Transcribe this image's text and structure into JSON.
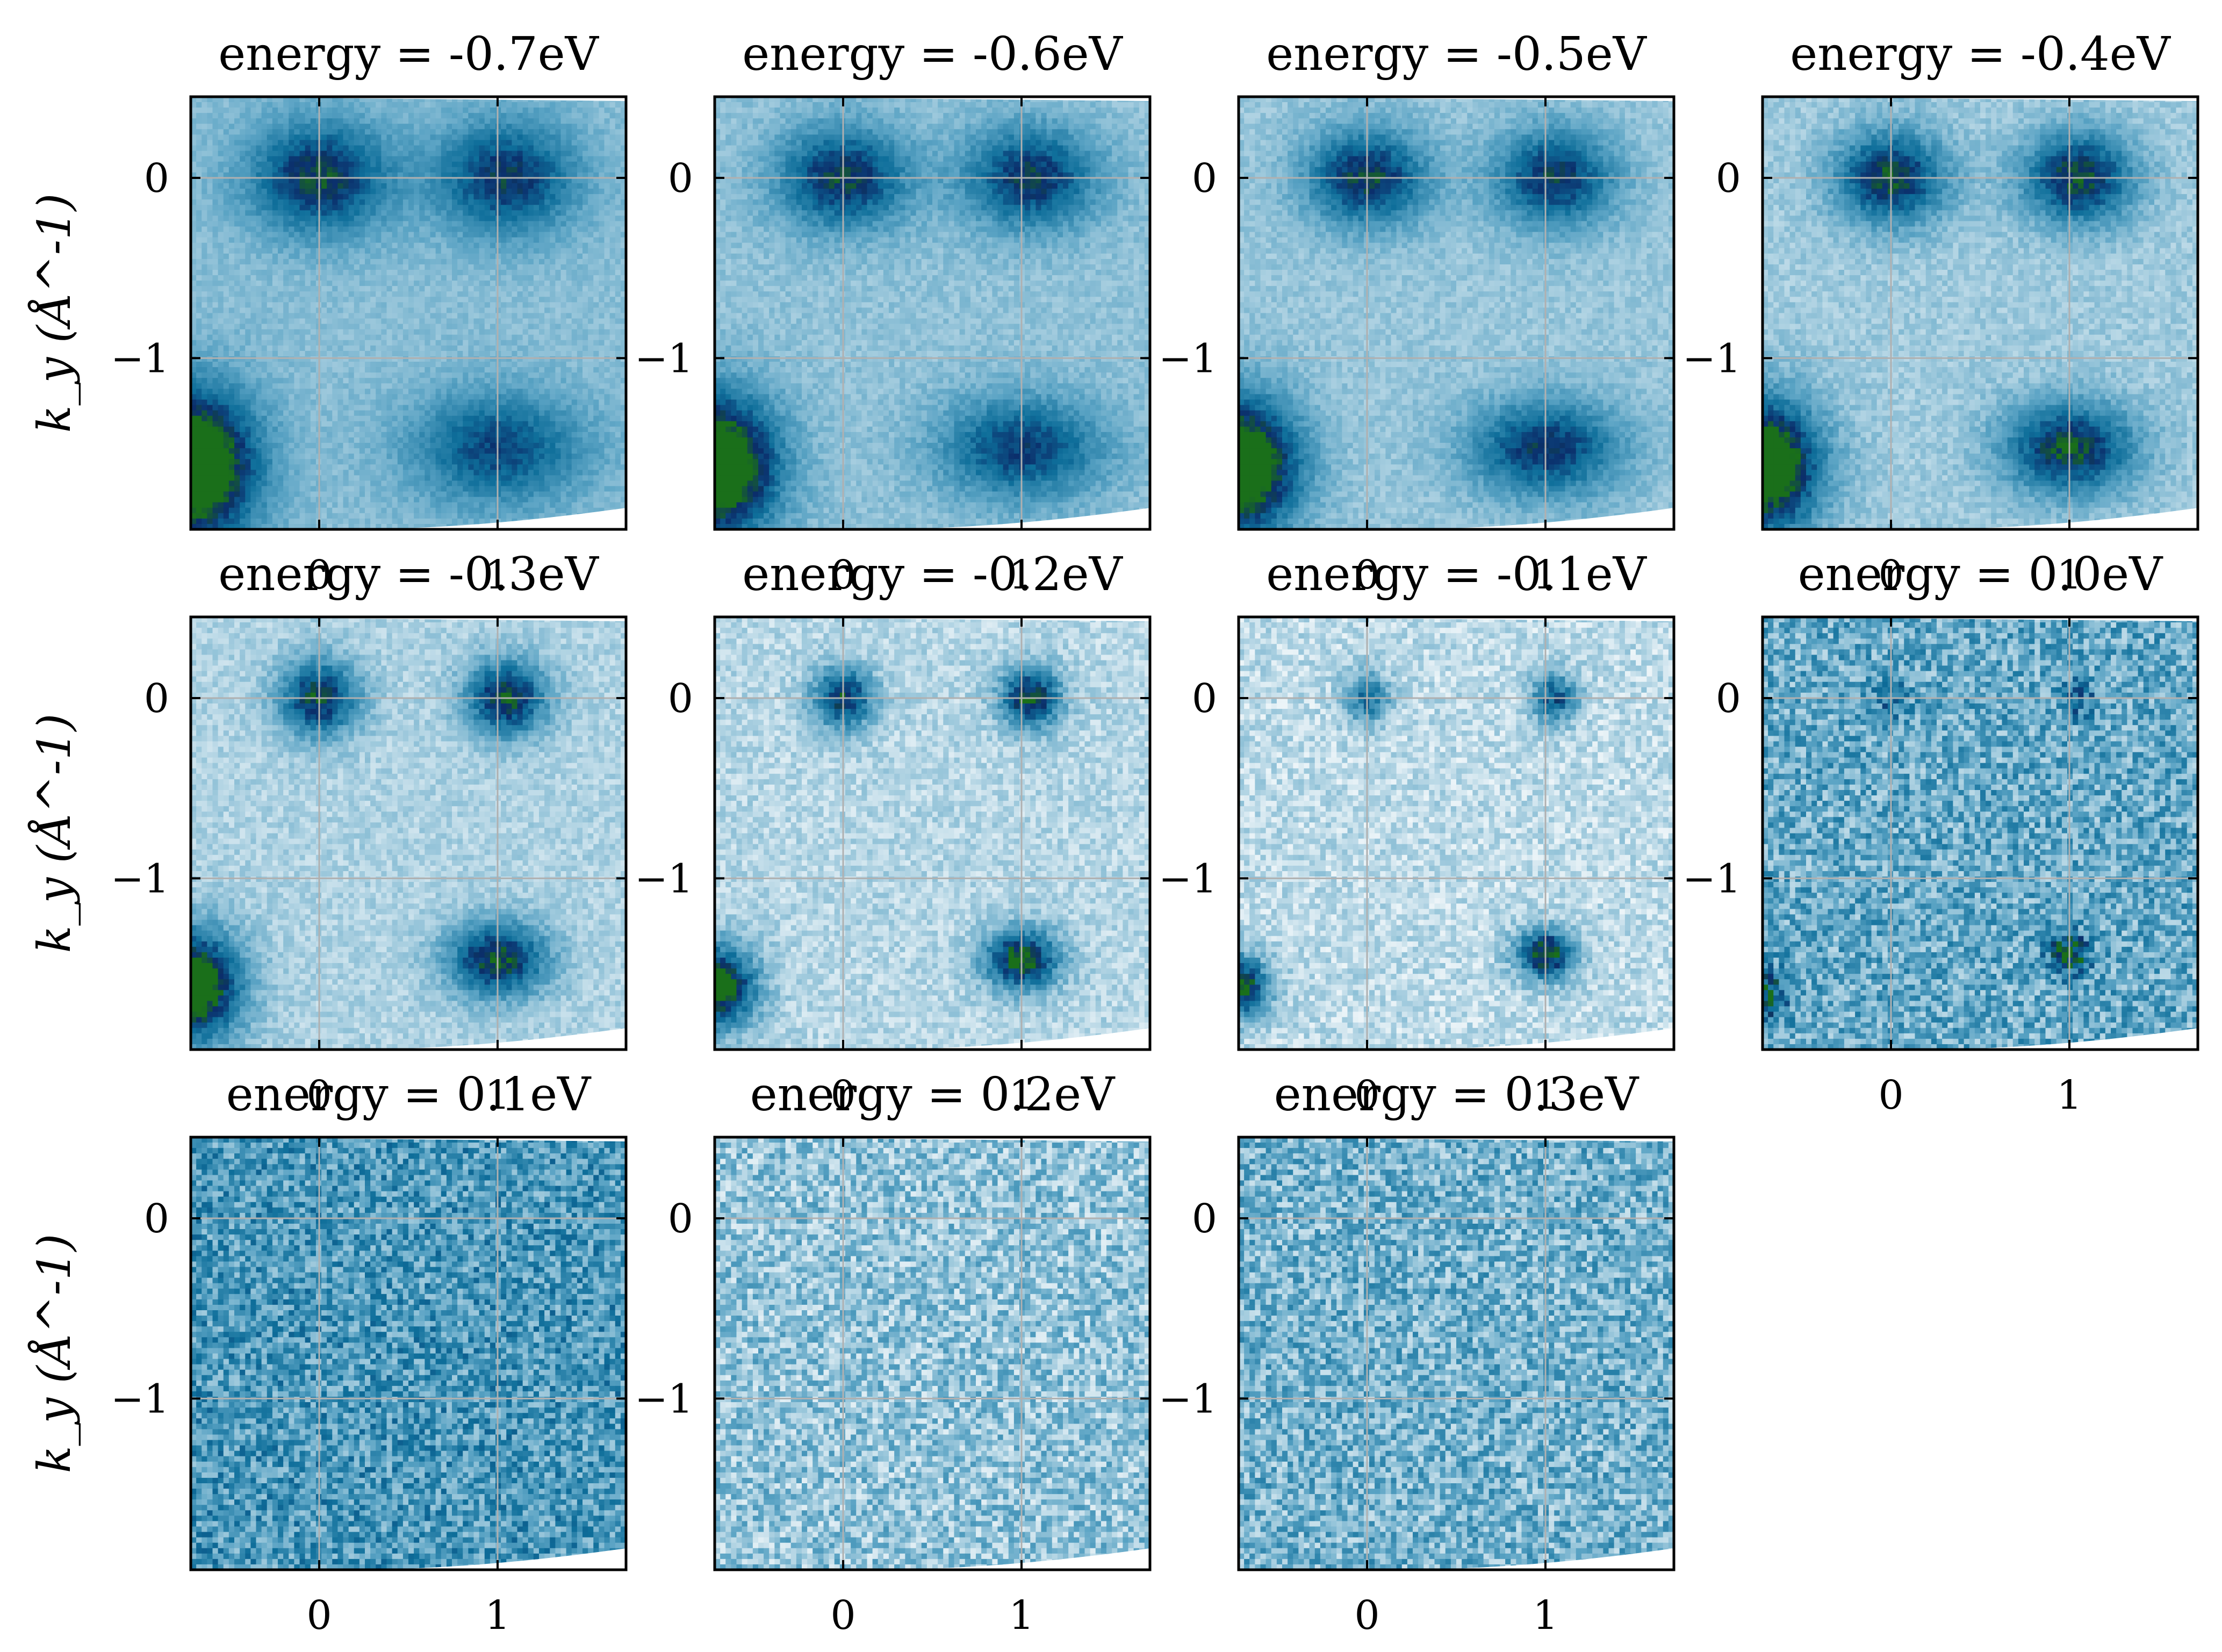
{
  "chart_data": [
    {
      "type": "heatmap",
      "title": "energy = -0.7eV",
      "ylabel": "k_y (Å^-1)",
      "xticks": [
        "0",
        "1"
      ],
      "yticks": [
        "0",
        "−1"
      ],
      "xlim": [
        -0.72,
        1.72
      ],
      "ylim": [
        -1.95,
        0.45
      ],
      "grid": true,
      "colormap": "ocean_r",
      "blobs": [
        {
          "x": 0.0,
          "y": 0.0,
          "intensity": 0.62,
          "sx": 0.28,
          "sy": 0.22
        },
        {
          "x": 1.05,
          "y": 0.0,
          "intensity": 0.58,
          "sx": 0.28,
          "sy": 0.22
        },
        {
          "x": -0.72,
          "y": -1.6,
          "intensity": 1.0,
          "sx": 0.26,
          "sy": 0.3
        },
        {
          "x": 1.0,
          "y": -1.5,
          "intensity": 0.5,
          "sx": 0.34,
          "sy": 0.22
        }
      ],
      "noise": 0.06,
      "background": 0.32
    },
    {
      "type": "heatmap",
      "title": "energy = -0.6eV",
      "ylabel": "",
      "xticks": [
        "0",
        "1"
      ],
      "yticks": [
        "0",
        "−1"
      ],
      "xlim": [
        -0.72,
        1.72
      ],
      "ylim": [
        -1.95,
        0.45
      ],
      "grid": true,
      "colormap": "ocean_r",
      "blobs": [
        {
          "x": 0.0,
          "y": 0.0,
          "intensity": 0.62,
          "sx": 0.26,
          "sy": 0.2
        },
        {
          "x": 1.05,
          "y": 0.0,
          "intensity": 0.6,
          "sx": 0.26,
          "sy": 0.2
        },
        {
          "x": -0.72,
          "y": -1.6,
          "intensity": 1.0,
          "sx": 0.25,
          "sy": 0.28
        },
        {
          "x": 1.0,
          "y": -1.5,
          "intensity": 0.55,
          "sx": 0.32,
          "sy": 0.2
        }
      ],
      "noise": 0.07,
      "background": 0.3
    },
    {
      "type": "heatmap",
      "title": "energy = -0.5eV",
      "ylabel": "",
      "xticks": [
        "0",
        "1"
      ],
      "yticks": [
        "0",
        "−1"
      ],
      "xlim": [
        -0.72,
        1.72
      ],
      "ylim": [
        -1.95,
        0.45
      ],
      "grid": true,
      "colormap": "ocean_r",
      "blobs": [
        {
          "x": 0.0,
          "y": 0.0,
          "intensity": 0.65,
          "sx": 0.24,
          "sy": 0.19
        },
        {
          "x": 1.05,
          "y": 0.0,
          "intensity": 0.62,
          "sx": 0.24,
          "sy": 0.19
        },
        {
          "x": -0.72,
          "y": -1.6,
          "intensity": 1.0,
          "sx": 0.24,
          "sy": 0.27
        },
        {
          "x": 1.0,
          "y": -1.5,
          "intensity": 0.6,
          "sx": 0.3,
          "sy": 0.19
        }
      ],
      "noise": 0.07,
      "background": 0.28
    },
    {
      "type": "heatmap",
      "title": "energy = -0.4eV",
      "ylabel": "",
      "xticks": [
        "0",
        "1"
      ],
      "yticks": [
        "0",
        "−1"
      ],
      "xlim": [
        -0.72,
        1.72
      ],
      "ylim": [
        -1.95,
        0.45
      ],
      "grid": true,
      "colormap": "ocean_r",
      "blobs": [
        {
          "x": 0.0,
          "y": 0.0,
          "intensity": 0.7,
          "sx": 0.22,
          "sy": 0.18
        },
        {
          "x": 1.05,
          "y": 0.0,
          "intensity": 0.7,
          "sx": 0.22,
          "sy": 0.18
        },
        {
          "x": -0.72,
          "y": -1.6,
          "intensity": 1.0,
          "sx": 0.23,
          "sy": 0.26
        },
        {
          "x": 1.0,
          "y": -1.5,
          "intensity": 0.7,
          "sx": 0.26,
          "sy": 0.18
        }
      ],
      "noise": 0.08,
      "background": 0.26
    },
    {
      "type": "heatmap",
      "title": "energy = -0.3eV",
      "ylabel": "k_y (Å^-1)",
      "xticks": [
        "0",
        "1"
      ],
      "yticks": [
        "0",
        "−1"
      ],
      "xlim": [
        -0.72,
        1.72
      ],
      "ylim": [
        -1.95,
        0.45
      ],
      "grid": true,
      "colormap": "ocean_r",
      "blobs": [
        {
          "x": 0.0,
          "y": 0.0,
          "intensity": 0.72,
          "sx": 0.16,
          "sy": 0.15
        },
        {
          "x": 1.05,
          "y": 0.0,
          "intensity": 0.75,
          "sx": 0.16,
          "sy": 0.15
        },
        {
          "x": -0.72,
          "y": -1.6,
          "intensity": 1.0,
          "sx": 0.2,
          "sy": 0.22
        },
        {
          "x": 1.0,
          "y": -1.45,
          "intensity": 0.75,
          "sx": 0.2,
          "sy": 0.15
        }
      ],
      "noise": 0.09,
      "background": 0.22
    },
    {
      "type": "heatmap",
      "title": "energy = -0.2eV",
      "ylabel": "",
      "xticks": [
        "0",
        "1"
      ],
      "yticks": [
        "0",
        "−1"
      ],
      "xlim": [
        -0.72,
        1.72
      ],
      "ylim": [
        -1.95,
        0.45
      ],
      "grid": true,
      "colormap": "ocean_r",
      "blobs": [
        {
          "x": 0.0,
          "y": 0.0,
          "intensity": 0.72,
          "sx": 0.12,
          "sy": 0.12
        },
        {
          "x": 1.05,
          "y": 0.0,
          "intensity": 0.78,
          "sx": 0.12,
          "sy": 0.12
        },
        {
          "x": -0.72,
          "y": -1.6,
          "intensity": 0.95,
          "sx": 0.16,
          "sy": 0.16
        },
        {
          "x": 1.0,
          "y": -1.45,
          "intensity": 0.82,
          "sx": 0.15,
          "sy": 0.12
        }
      ],
      "noise": 0.11,
      "background": 0.2
    },
    {
      "type": "heatmap",
      "title": "energy = -0.1eV",
      "ylabel": "",
      "xticks": [
        "0",
        "1"
      ],
      "yticks": [
        "0",
        "−1"
      ],
      "xlim": [
        -0.72,
        1.72
      ],
      "ylim": [
        -1.95,
        0.45
      ],
      "grid": true,
      "colormap": "ocean_r",
      "blobs": [
        {
          "x": 0.0,
          "y": 0.0,
          "intensity": 0.5,
          "sx": 0.09,
          "sy": 0.1
        },
        {
          "x": 1.05,
          "y": 0.0,
          "intensity": 0.6,
          "sx": 0.09,
          "sy": 0.1
        },
        {
          "x": -0.72,
          "y": -1.6,
          "intensity": 0.85,
          "sx": 0.12,
          "sy": 0.12
        },
        {
          "x": 1.0,
          "y": -1.42,
          "intensity": 0.82,
          "sx": 0.12,
          "sy": 0.1
        }
      ],
      "noise": 0.13,
      "background": 0.18
    },
    {
      "type": "heatmap",
      "title": "energy = 0.0eV",
      "ylabel": "",
      "xticks": [
        "0",
        "1"
      ],
      "yticks": [
        "0",
        "−1"
      ],
      "xlim": [
        -0.72,
        1.72
      ],
      "ylim": [
        -1.95,
        0.45
      ],
      "grid": true,
      "colormap": "ocean_r",
      "blobs": [
        {
          "x": 0.0,
          "y": 0.0,
          "intensity": 0.25,
          "sx": 0.07,
          "sy": 0.08
        },
        {
          "x": 1.05,
          "y": 0.0,
          "intensity": 0.3,
          "sx": 0.07,
          "sy": 0.08
        },
        {
          "x": -0.72,
          "y": -1.65,
          "intensity": 0.55,
          "sx": 0.09,
          "sy": 0.1
        },
        {
          "x": 1.0,
          "y": -1.42,
          "intensity": 0.6,
          "sx": 0.08,
          "sy": 0.08
        }
      ],
      "noise": 0.24,
      "background": 0.42
    },
    {
      "type": "heatmap",
      "title": "energy = 0.1eV",
      "ylabel": "k_y (Å^-1)",
      "xticks": [
        "0",
        "1"
      ],
      "yticks": [
        "0",
        "−1"
      ],
      "xlim": [
        -0.72,
        1.72
      ],
      "ylim": [
        -1.95,
        0.45
      ],
      "grid": true,
      "colormap": "ocean_r",
      "blobs": [],
      "noise": 0.24,
      "background": 0.5
    },
    {
      "type": "heatmap",
      "title": "energy = 0.2eV",
      "ylabel": "",
      "xticks": [
        "0",
        "1"
      ],
      "yticks": [
        "0",
        "−1"
      ],
      "xlim": [
        -0.72,
        1.72
      ],
      "ylim": [
        -1.95,
        0.45
      ],
      "grid": true,
      "colormap": "ocean_r",
      "blobs": [],
      "noise": 0.22,
      "background": 0.3
    },
    {
      "type": "heatmap",
      "title": "energy = 0.3eV",
      "ylabel": "",
      "xticks": [
        "0",
        "1"
      ],
      "yticks": [
        "0",
        "−1"
      ],
      "xlim": [
        -0.72,
        1.72
      ],
      "ylim": [
        -1.95,
        0.45
      ],
      "grid": true,
      "colormap": "ocean_r",
      "blobs": [],
      "noise": 0.24,
      "background": 0.38
    }
  ],
  "figure": {
    "colors": {
      "axis": "#000000",
      "grid": "#b0b0b0",
      "cmap_low": "#ffffff",
      "cmap_mid": "#0e6e9a",
      "cmap_high": "#0b2e6b",
      "cmap_top": "#1a6f1a"
    }
  }
}
